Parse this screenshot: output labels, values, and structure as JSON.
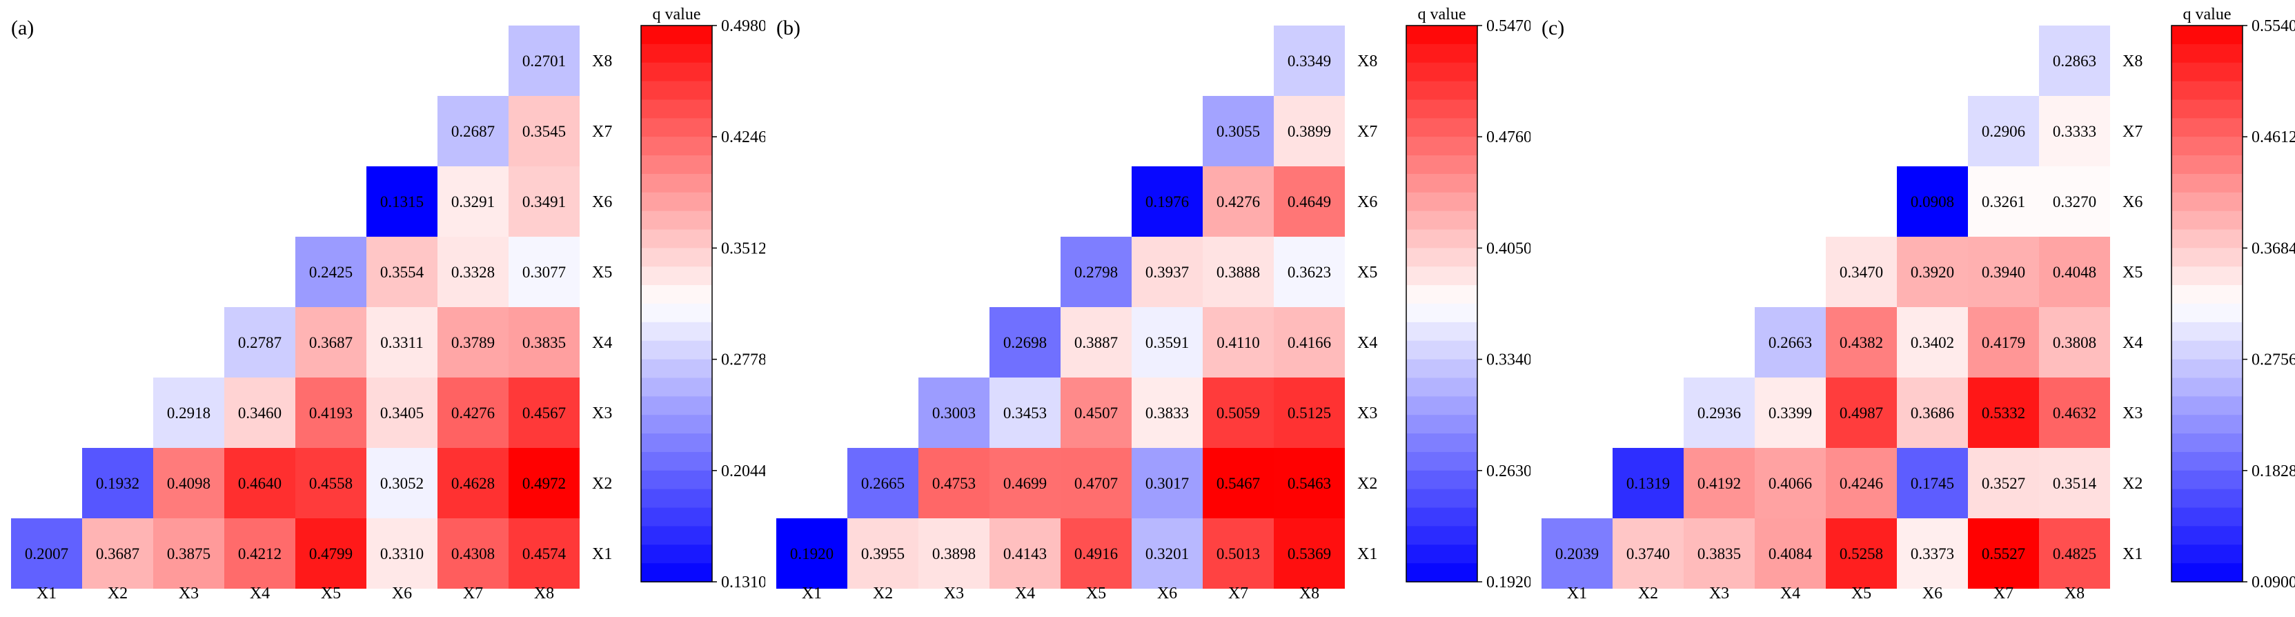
{
  "colors": {
    "low": "#0000ff",
    "mid": "#ffffff",
    "high": "#ff0000"
  },
  "chart_data": [
    {
      "type": "heatmap",
      "panel_label": "(a)",
      "x_categories": [
        "X1",
        "X2",
        "X3",
        "X4",
        "X5",
        "X6",
        "X7",
        "X8"
      ],
      "y_categories": [
        "X1",
        "X2",
        "X3",
        "X4",
        "X5",
        "X6",
        "X7",
        "X8"
      ],
      "matrix": [
        [
          0.2007,
          0.3687,
          0.3875,
          0.4212,
          0.4799,
          0.331,
          0.4308,
          0.4574
        ],
        [
          null,
          0.1932,
          0.4098,
          0.464,
          0.4558,
          0.3052,
          0.4628,
          0.4972
        ],
        [
          null,
          null,
          0.2918,
          0.346,
          0.4193,
          0.3405,
          0.4276,
          0.4567
        ],
        [
          null,
          null,
          null,
          0.2787,
          0.3687,
          0.3311,
          0.3789,
          0.3835
        ],
        [
          null,
          null,
          null,
          null,
          0.2425,
          0.3554,
          0.3328,
          0.3077
        ],
        [
          null,
          null,
          null,
          null,
          null,
          0.1315,
          0.3291,
          0.3491
        ],
        [
          null,
          null,
          null,
          null,
          null,
          null,
          0.2687,
          0.3545
        ],
        [
          null,
          null,
          null,
          null,
          null,
          null,
          null,
          0.2701
        ]
      ],
      "colorbar": {
        "title": "q value",
        "min": 0.131,
        "max": 0.498,
        "ticks": [
          "0.4980",
          "0.4246",
          "0.3512",
          "0.2778",
          "0.2044",
          "0.1310"
        ]
      }
    },
    {
      "type": "heatmap",
      "panel_label": "(b)",
      "x_categories": [
        "X1",
        "X2",
        "X3",
        "X4",
        "X5",
        "X6",
        "X7",
        "X8"
      ],
      "y_categories": [
        "X1",
        "X2",
        "X3",
        "X4",
        "X5",
        "X6",
        "X7",
        "X8"
      ],
      "matrix": [
        [
          0.192,
          0.3955,
          0.3898,
          0.4143,
          0.4916,
          0.3201,
          0.5013,
          0.5369
        ],
        [
          null,
          0.2665,
          0.4753,
          0.4699,
          0.4707,
          0.3017,
          0.5467,
          0.5463
        ],
        [
          null,
          null,
          0.3003,
          0.3453,
          0.4507,
          0.3833,
          0.5059,
          0.5125
        ],
        [
          null,
          null,
          null,
          0.2698,
          0.3887,
          0.3591,
          0.411,
          0.4166
        ],
        [
          null,
          null,
          null,
          null,
          0.2798,
          0.3937,
          0.3888,
          0.3623
        ],
        [
          null,
          null,
          null,
          null,
          null,
          0.1976,
          0.4276,
          0.4649
        ],
        [
          null,
          null,
          null,
          null,
          null,
          null,
          0.3055,
          0.3899
        ],
        [
          null,
          null,
          null,
          null,
          null,
          null,
          null,
          0.3349
        ]
      ],
      "colorbar": {
        "title": "q value",
        "min": 0.192,
        "max": 0.547,
        "ticks": [
          "0.5470",
          "0.4760",
          "0.4050",
          "0.3340",
          "0.2630",
          "0.1920"
        ]
      }
    },
    {
      "type": "heatmap",
      "panel_label": "(c)",
      "x_categories": [
        "X1",
        "X2",
        "X3",
        "X4",
        "X5",
        "X6",
        "X7",
        "X8"
      ],
      "y_categories": [
        "X1",
        "X2",
        "X3",
        "X4",
        "X5",
        "X6",
        "X7",
        "X8"
      ],
      "matrix": [
        [
          0.2039,
          0.374,
          0.3835,
          0.4084,
          0.5258,
          0.3373,
          0.5527,
          0.4825
        ],
        [
          null,
          0.1319,
          0.4192,
          0.4066,
          0.4246,
          0.1745,
          0.3527,
          0.3514
        ],
        [
          null,
          null,
          0.2936,
          0.3399,
          0.4987,
          0.3686,
          0.5332,
          0.4632
        ],
        [
          null,
          null,
          null,
          0.2663,
          0.4382,
          0.3402,
          0.4179,
          0.3808
        ],
        [
          null,
          null,
          null,
          null,
          0.347,
          0.392,
          0.394,
          0.4048
        ],
        [
          null,
          null,
          null,
          null,
          null,
          0.0908,
          0.3261,
          0.327
        ],
        [
          null,
          null,
          null,
          null,
          null,
          null,
          0.2906,
          0.3333
        ],
        [
          null,
          null,
          null,
          null,
          null,
          null,
          null,
          0.2863
        ]
      ],
      "colorbar": {
        "title": "q value",
        "min": 0.09,
        "max": 0.554,
        "ticks": [
          "0.5540",
          "0.4612",
          "0.3684",
          "0.2756",
          "0.1828",
          "0.0900"
        ]
      }
    }
  ]
}
